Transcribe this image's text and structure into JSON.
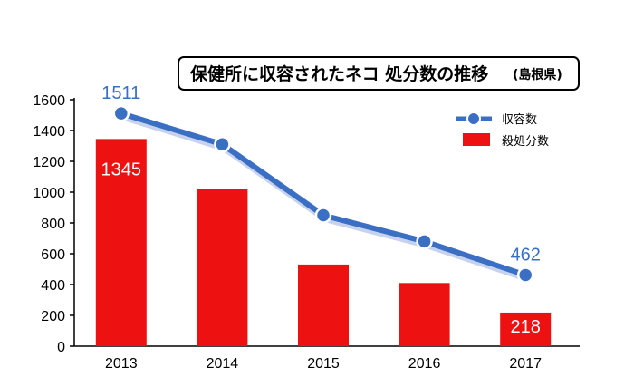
{
  "chart_data": {
    "type": "bar",
    "title": "保健所に収容されたネコ 処分数の推移",
    "subtitle": "(島根県)",
    "categories": [
      "2013",
      "2014",
      "2015",
      "2016",
      "2017"
    ],
    "ylim": [
      0,
      1600
    ],
    "yticks": [
      "0",
      "200",
      "400",
      "600",
      "800",
      "1000",
      "1200",
      "1400",
      "1600"
    ],
    "grid": false,
    "legend_position": "top-right",
    "series": [
      {
        "name": "収容数",
        "type": "line",
        "values": [
          1511,
          1310,
          850,
          680,
          462
        ],
        "data_labels": [
          "1511",
          "",
          "",
          "",
          "462"
        ],
        "color": "#3a6fc4"
      },
      {
        "name": "殺処分数",
        "type": "bar",
        "values": [
          1345,
          1020,
          530,
          410,
          218
        ],
        "data_labels": [
          "1345",
          "",
          "",
          "",
          "218"
        ],
        "color": "#ee1111"
      }
    ]
  }
}
